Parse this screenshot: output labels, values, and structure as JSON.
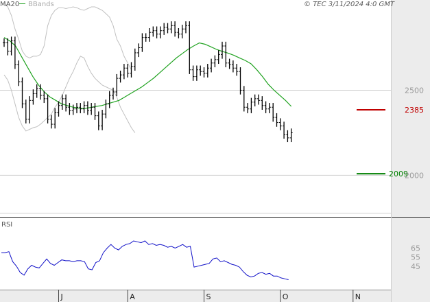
{
  "header": {
    "legend_ma": "MA20",
    "legend_bb": "BBands",
    "watermark": "© TEC 3/11/2024 4:0 GMT"
  },
  "colors": {
    "price": "#000000",
    "ma": "#1fa21f",
    "bbands": "#c0c0c0",
    "resistance": "#c00000",
    "support": "#008000",
    "rsi": "#1010c8",
    "axis_bg": "#ececec"
  },
  "chart_data": [
    {
      "type": "ohlc",
      "title": "",
      "legend": [
        "MA20",
        "BBands"
      ],
      "y_ticks": [
        2000,
        2500
      ],
      "ylim": [
        1820,
        2990
      ],
      "x_labels": [
        {
          "label": "J",
          "index": 15
        },
        {
          "label": "A",
          "index": 34
        },
        {
          "label": "S",
          "index": 55
        },
        {
          "label": "O",
          "index": 76
        },
        {
          "label": "N",
          "index": 96
        }
      ],
      "close": [
        2780,
        2730,
        2790,
        2650,
        2550,
        2420,
        2330,
        2440,
        2480,
        2510,
        2470,
        2450,
        2330,
        2300,
        2370,
        2410,
        2450,
        2400,
        2380,
        2390,
        2400,
        2390,
        2410,
        2380,
        2400,
        2350,
        2290,
        2360,
        2420,
        2470,
        2490,
        2570,
        2590,
        2630,
        2600,
        2640,
        2720,
        2750,
        2810,
        2810,
        2840,
        2850,
        2830,
        2850,
        2870,
        2860,
        2880,
        2840,
        2830,
        2860,
        2880,
        2620,
        2580,
        2620,
        2610,
        2600,
        2630,
        2660,
        2680,
        2710,
        2760,
        2660,
        2650,
        2630,
        2610,
        2500,
        2400,
        2390,
        2430,
        2450,
        2440,
        2410,
        2390,
        2400,
        2340,
        2310,
        2290,
        2240,
        2220,
        2250
      ],
      "ma20": [
        2810,
        2790,
        2760,
        2700,
        2640,
        2580,
        2530,
        2490,
        2460,
        2440,
        2420,
        2410,
        2400,
        2395,
        2393,
        2398,
        2405,
        2410,
        2420,
        2430,
        2440,
        2460,
        2480,
        2500,
        2520,
        2545,
        2570,
        2600,
        2630,
        2660,
        2690,
        2715,
        2740,
        2760,
        2778,
        2770,
        2755,
        2740,
        2728,
        2718,
        2705,
        2690,
        2675,
        2655,
        2620,
        2580,
        2535,
        2500,
        2470,
        2440,
        2405
      ],
      "ma20_start": 0,
      "upper_band": [
        3010,
        2990,
        2940,
        2860,
        2800,
        2730,
        2700,
        2690,
        2700,
        2700,
        2710,
        2760,
        2880,
        2940,
        2970,
        2985,
        2985,
        2980,
        2985,
        2990,
        2985,
        2975,
        2970,
        2980,
        2990,
        2990,
        2980,
        2970,
        2950,
        2930,
        2880,
        2800,
        2760,
        2700,
        2660,
        2620
      ],
      "lower_band": [
        2590,
        2560,
        2500,
        2420,
        2340,
        2290,
        2260,
        2270,
        2280,
        2285,
        2300,
        2320,
        2340,
        2360,
        2400,
        2430,
        2470,
        2520,
        2570,
        2610,
        2660,
        2700,
        2690,
        2640,
        2600,
        2570,
        2550,
        2530,
        2520,
        2510,
        2500,
        2460,
        2400,
        2360,
        2320,
        2280,
        2250
      ],
      "resistance": {
        "value": 2385,
        "label": "2385"
      },
      "support": {
        "value": 2009,
        "label": "2009"
      }
    },
    {
      "type": "line",
      "title": "RSI",
      "ylim": [
        22,
        92
      ],
      "y_ticks": [
        45,
        55,
        65
      ],
      "values": [
        60,
        60,
        61,
        50,
        45,
        38,
        35,
        42,
        46,
        44,
        43,
        48,
        53,
        48,
        46,
        49,
        52,
        51,
        51,
        50,
        51,
        51,
        50,
        42,
        41,
        49,
        51,
        60,
        65,
        69,
        65,
        63,
        67,
        69,
        70,
        73,
        72,
        71,
        73,
        69,
        70,
        68,
        69,
        68,
        66,
        67,
        65,
        67,
        69,
        66,
        67,
        44,
        45,
        46,
        47,
        48,
        53,
        54,
        50,
        51,
        49,
        47,
        46,
        44,
        39,
        35,
        33,
        34,
        37,
        38,
        36,
        37,
        34,
        34,
        32,
        31,
        30
      ]
    }
  ]
}
